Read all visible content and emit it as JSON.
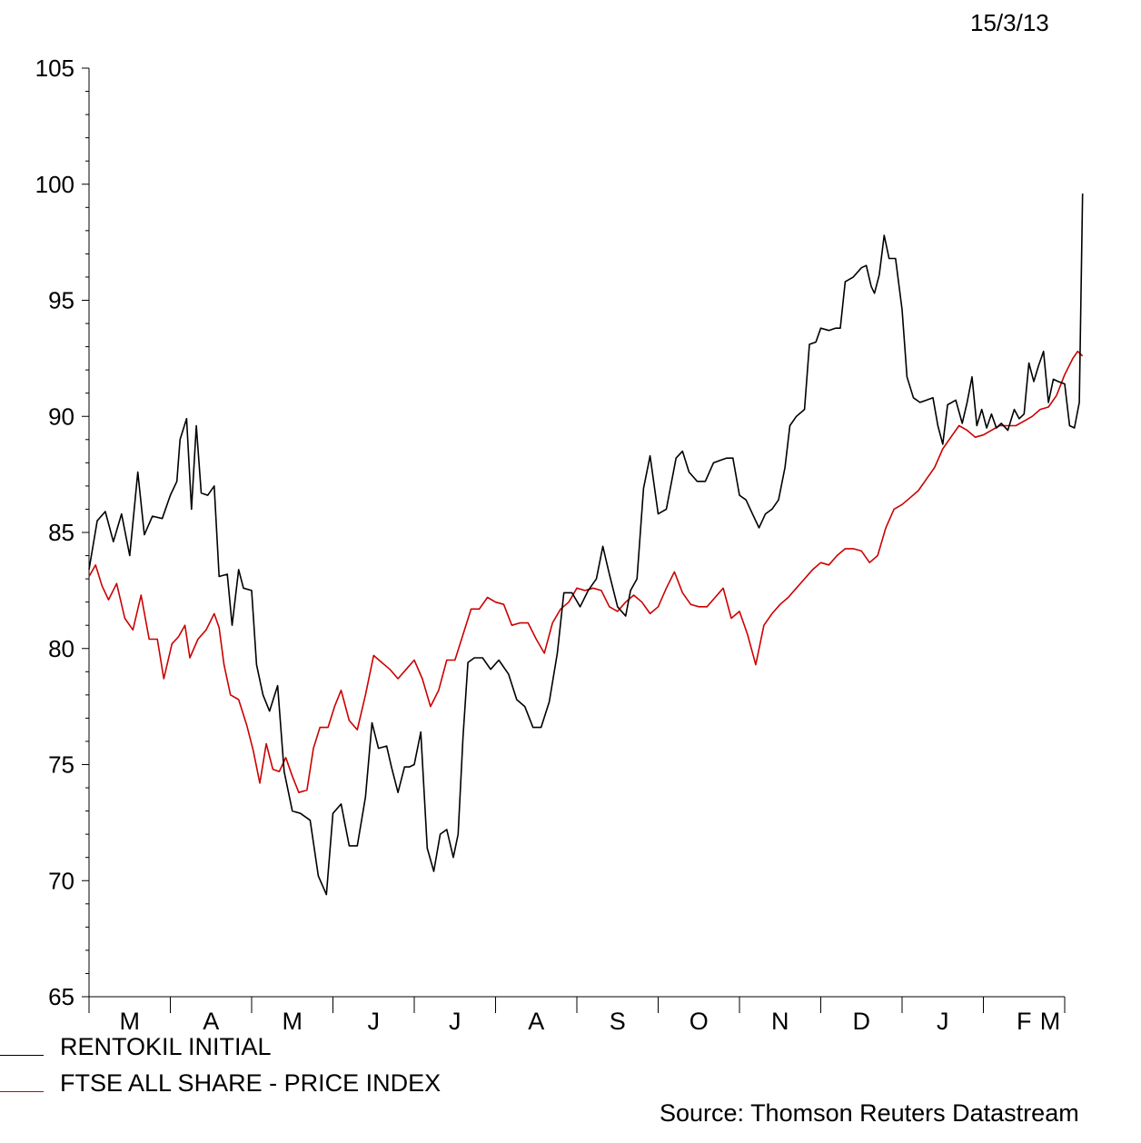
{
  "date_label": "15/3/13",
  "source": "Source: Thomson Reuters Datastream",
  "chart_data": {
    "type": "line",
    "title": "",
    "xlabel": "",
    "ylabel": "",
    "ylim": [
      65,
      105
    ],
    "yticks": [
      "105",
      "100",
      "95",
      "90",
      "85",
      "80",
      "75",
      "70",
      "65"
    ],
    "x_range": [
      0,
      12
    ],
    "month_ticks": [
      "M",
      "A",
      "M",
      "J",
      "J",
      "A",
      "S",
      "O",
      "N",
      "D",
      "J",
      "F",
      "M"
    ],
    "legend_position": "bottom-left",
    "grid": false,
    "series": [
      {
        "name": "RENTOKIL INITIAL",
        "color": "#000000",
        "points": [
          [
            0.0,
            83.4
          ],
          [
            0.1,
            85.5
          ],
          [
            0.2,
            85.9
          ],
          [
            0.3,
            84.6
          ],
          [
            0.4,
            85.8
          ],
          [
            0.5,
            84.0
          ],
          [
            0.6,
            87.6
          ],
          [
            0.68,
            84.9
          ],
          [
            0.78,
            85.7
          ],
          [
            0.9,
            85.6
          ],
          [
            1.0,
            86.6
          ],
          [
            1.08,
            87.2
          ],
          [
            1.12,
            89.0
          ],
          [
            1.2,
            89.9
          ],
          [
            1.26,
            86.0
          ],
          [
            1.32,
            89.6
          ],
          [
            1.38,
            86.7
          ],
          [
            1.46,
            86.6
          ],
          [
            1.54,
            87.0
          ],
          [
            1.6,
            83.1
          ],
          [
            1.7,
            83.2
          ],
          [
            1.76,
            81.0
          ],
          [
            1.84,
            83.4
          ],
          [
            1.9,
            82.6
          ],
          [
            2.0,
            82.5
          ],
          [
            2.06,
            79.3
          ],
          [
            2.14,
            78.0
          ],
          [
            2.22,
            77.3
          ],
          [
            2.32,
            78.4
          ],
          [
            2.4,
            74.7
          ],
          [
            2.5,
            73.0
          ],
          [
            2.6,
            72.9
          ],
          [
            2.72,
            72.6
          ],
          [
            2.82,
            70.2
          ],
          [
            2.92,
            69.4
          ],
          [
            3.0,
            72.9
          ],
          [
            3.1,
            73.3
          ],
          [
            3.2,
            71.5
          ],
          [
            3.3,
            71.5
          ],
          [
            3.4,
            73.6
          ],
          [
            3.48,
            76.8
          ],
          [
            3.56,
            75.7
          ],
          [
            3.66,
            75.8
          ],
          [
            3.72,
            74.9
          ],
          [
            3.8,
            73.8
          ],
          [
            3.88,
            74.9
          ],
          [
            3.94,
            74.9
          ],
          [
            4.0,
            75.0
          ],
          [
            4.08,
            76.4
          ],
          [
            4.16,
            71.4
          ],
          [
            4.24,
            70.4
          ],
          [
            4.32,
            72.0
          ],
          [
            4.4,
            72.2
          ],
          [
            4.48,
            71.0
          ],
          [
            4.54,
            72.0
          ],
          [
            4.6,
            76.2
          ],
          [
            4.66,
            79.4
          ],
          [
            4.74,
            79.6
          ],
          [
            4.84,
            79.6
          ],
          [
            4.94,
            79.1
          ],
          [
            5.04,
            79.5
          ],
          [
            5.16,
            78.9
          ],
          [
            5.26,
            77.8
          ],
          [
            5.36,
            77.5
          ],
          [
            5.46,
            76.6
          ],
          [
            5.56,
            76.6
          ],
          [
            5.66,
            77.7
          ],
          [
            5.76,
            79.8
          ],
          [
            5.84,
            82.4
          ],
          [
            5.94,
            82.4
          ],
          [
            6.04,
            81.8
          ],
          [
            6.14,
            82.5
          ],
          [
            6.24,
            83.0
          ],
          [
            6.32,
            84.4
          ],
          [
            6.4,
            83.2
          ],
          [
            6.5,
            81.8
          ],
          [
            6.6,
            81.4
          ],
          [
            6.66,
            82.5
          ],
          [
            6.74,
            83.0
          ],
          [
            6.82,
            86.9
          ],
          [
            6.9,
            88.3
          ],
          [
            7.0,
            85.8
          ],
          [
            7.1,
            86.0
          ],
          [
            7.22,
            88.2
          ],
          [
            7.3,
            88.5
          ],
          [
            7.38,
            87.6
          ],
          [
            7.48,
            87.2
          ],
          [
            7.58,
            87.2
          ],
          [
            7.68,
            88.0
          ],
          [
            7.76,
            88.1
          ],
          [
            7.84,
            88.2
          ],
          [
            7.92,
            88.2
          ],
          [
            8.0,
            86.6
          ],
          [
            8.08,
            86.4
          ],
          [
            8.16,
            85.8
          ],
          [
            8.24,
            85.2
          ],
          [
            8.32,
            85.8
          ],
          [
            8.4,
            86.0
          ],
          [
            8.48,
            86.4
          ],
          [
            8.56,
            87.8
          ],
          [
            8.62,
            89.6
          ],
          [
            8.7,
            90.0
          ],
          [
            8.8,
            90.3
          ],
          [
            8.86,
            93.1
          ],
          [
            8.94,
            93.2
          ],
          [
            9.0,
            93.8
          ],
          [
            9.1,
            93.7
          ],
          [
            9.18,
            93.8
          ],
          [
            9.24,
            93.8
          ],
          [
            9.3,
            95.8
          ],
          [
            9.4,
            96.0
          ],
          [
            9.5,
            96.4
          ],
          [
            9.56,
            96.5
          ],
          [
            9.62,
            95.6
          ],
          [
            9.66,
            95.3
          ],
          [
            9.72,
            96.1
          ],
          [
            9.78,
            97.8
          ],
          [
            9.84,
            96.8
          ],
          [
            9.92,
            96.8
          ],
          [
            10.0,
            94.6
          ],
          [
            10.06,
            91.7
          ],
          [
            10.14,
            90.8
          ],
          [
            10.22,
            90.6
          ],
          [
            10.3,
            90.7
          ],
          [
            10.38,
            90.8
          ],
          [
            10.44,
            89.6
          ],
          [
            10.5,
            88.8
          ],
          [
            10.56,
            90.5
          ],
          [
            10.66,
            90.7
          ],
          [
            10.74,
            89.7
          ],
          [
            10.8,
            90.6
          ],
          [
            10.86,
            91.7
          ],
          [
            10.92,
            89.6
          ],
          [
            10.98,
            90.3
          ],
          [
            11.04,
            89.5
          ],
          [
            11.1,
            90.1
          ],
          [
            11.16,
            89.5
          ],
          [
            11.22,
            89.7
          ],
          [
            11.3,
            89.4
          ],
          [
            11.38,
            90.3
          ],
          [
            11.44,
            89.9
          ],
          [
            11.5,
            90.1
          ],
          [
            11.56,
            92.3
          ],
          [
            11.62,
            91.5
          ],
          [
            11.68,
            92.2
          ],
          [
            11.74,
            92.8
          ],
          [
            11.8,
            90.6
          ],
          [
            11.86,
            91.6
          ],
          [
            11.92,
            91.5
          ],
          [
            12.0,
            91.4
          ],
          [
            12.06,
            89.6
          ],
          [
            12.12,
            89.5
          ],
          [
            12.18,
            90.6
          ],
          [
            12.22,
            99.6
          ]
        ]
      },
      {
        "name": "FTSE ALL SHARE - PRICE INDEX",
        "color": "#cc0000",
        "points": [
          [
            0.0,
            83.1
          ],
          [
            0.08,
            83.6
          ],
          [
            0.16,
            82.7
          ],
          [
            0.24,
            82.1
          ],
          [
            0.34,
            82.8
          ],
          [
            0.44,
            81.3
          ],
          [
            0.54,
            80.8
          ],
          [
            0.64,
            82.3
          ],
          [
            0.74,
            80.4
          ],
          [
            0.84,
            80.4
          ],
          [
            0.92,
            78.7
          ],
          [
            1.02,
            80.2
          ],
          [
            1.1,
            80.5
          ],
          [
            1.18,
            81.0
          ],
          [
            1.24,
            79.6
          ],
          [
            1.34,
            80.4
          ],
          [
            1.44,
            80.8
          ],
          [
            1.54,
            81.5
          ],
          [
            1.6,
            80.9
          ],
          [
            1.66,
            79.3
          ],
          [
            1.74,
            78.0
          ],
          [
            1.84,
            77.8
          ],
          [
            1.94,
            76.7
          ],
          [
            2.02,
            75.6
          ],
          [
            2.1,
            74.2
          ],
          [
            2.18,
            75.9
          ],
          [
            2.26,
            74.8
          ],
          [
            2.34,
            74.7
          ],
          [
            2.42,
            75.3
          ],
          [
            2.5,
            74.5
          ],
          [
            2.58,
            73.8
          ],
          [
            2.68,
            73.9
          ],
          [
            2.76,
            75.7
          ],
          [
            2.84,
            76.6
          ],
          [
            2.94,
            76.6
          ],
          [
            3.02,
            77.5
          ],
          [
            3.1,
            78.2
          ],
          [
            3.2,
            76.9
          ],
          [
            3.3,
            76.5
          ],
          [
            3.4,
            78.0
          ],
          [
            3.5,
            79.7
          ],
          [
            3.6,
            79.4
          ],
          [
            3.7,
            79.1
          ],
          [
            3.8,
            78.7
          ],
          [
            3.9,
            79.1
          ],
          [
            4.0,
            79.5
          ],
          [
            4.1,
            78.7
          ],
          [
            4.2,
            77.5
          ],
          [
            4.3,
            78.2
          ],
          [
            4.4,
            79.5
          ],
          [
            4.5,
            79.5
          ],
          [
            4.6,
            80.6
          ],
          [
            4.7,
            81.7
          ],
          [
            4.8,
            81.7
          ],
          [
            4.9,
            82.2
          ],
          [
            5.0,
            82.0
          ],
          [
            5.1,
            81.9
          ],
          [
            5.2,
            81.0
          ],
          [
            5.3,
            81.1
          ],
          [
            5.4,
            81.1
          ],
          [
            5.5,
            80.4
          ],
          [
            5.6,
            79.8
          ],
          [
            5.7,
            81.1
          ],
          [
            5.8,
            81.7
          ],
          [
            5.9,
            82.0
          ],
          [
            6.0,
            82.6
          ],
          [
            6.1,
            82.5
          ],
          [
            6.2,
            82.6
          ],
          [
            6.3,
            82.5
          ],
          [
            6.4,
            81.8
          ],
          [
            6.5,
            81.6
          ],
          [
            6.6,
            82.0
          ],
          [
            6.7,
            82.3
          ],
          [
            6.8,
            82.0
          ],
          [
            6.9,
            81.5
          ],
          [
            7.0,
            81.8
          ],
          [
            7.1,
            82.6
          ],
          [
            7.2,
            83.3
          ],
          [
            7.3,
            82.4
          ],
          [
            7.4,
            81.9
          ],
          [
            7.5,
            81.8
          ],
          [
            7.6,
            81.8
          ],
          [
            7.7,
            82.2
          ],
          [
            7.8,
            82.6
          ],
          [
            7.9,
            81.3
          ],
          [
            8.0,
            81.6
          ],
          [
            8.1,
            80.6
          ],
          [
            8.2,
            79.3
          ],
          [
            8.3,
            81.0
          ],
          [
            8.4,
            81.5
          ],
          [
            8.5,
            81.9
          ],
          [
            8.6,
            82.2
          ],
          [
            8.7,
            82.6
          ],
          [
            8.8,
            83.0
          ],
          [
            8.9,
            83.4
          ],
          [
            9.0,
            83.7
          ],
          [
            9.1,
            83.6
          ],
          [
            9.2,
            84.0
          ],
          [
            9.3,
            84.3
          ],
          [
            9.4,
            84.3
          ],
          [
            9.5,
            84.2
          ],
          [
            9.6,
            83.7
          ],
          [
            9.7,
            84.0
          ],
          [
            9.8,
            85.2
          ],
          [
            9.9,
            86.0
          ],
          [
            10.0,
            86.2
          ],
          [
            10.1,
            86.5
          ],
          [
            10.2,
            86.8
          ],
          [
            10.3,
            87.3
          ],
          [
            10.4,
            87.8
          ],
          [
            10.5,
            88.6
          ],
          [
            10.6,
            89.1
          ],
          [
            10.7,
            89.6
          ],
          [
            10.8,
            89.4
          ],
          [
            10.9,
            89.1
          ],
          [
            11.0,
            89.2
          ],
          [
            11.1,
            89.4
          ],
          [
            11.2,
            89.6
          ],
          [
            11.3,
            89.6
          ],
          [
            11.4,
            89.6
          ],
          [
            11.5,
            89.8
          ],
          [
            11.6,
            90.0
          ],
          [
            11.7,
            90.3
          ],
          [
            11.8,
            90.4
          ],
          [
            11.9,
            90.9
          ],
          [
            12.0,
            91.8
          ],
          [
            12.1,
            92.5
          ],
          [
            12.16,
            92.8
          ],
          [
            12.22,
            92.6
          ]
        ]
      }
    ]
  }
}
